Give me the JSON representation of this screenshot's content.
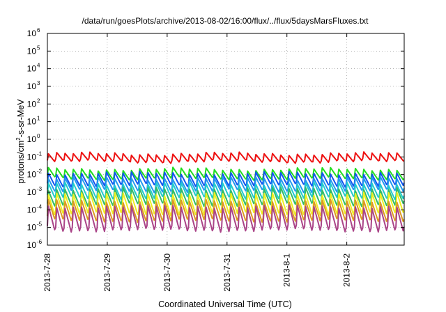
{
  "chart_data": {
    "type": "line",
    "title": "/data/run/goesPlots/archive/2013-08-02/16:00/flux/../flux/5daysMarsFluxes.txt",
    "xlabel": "Coordinated Universal Time (UTC)",
    "ylabel": {
      "pre": "protons/cm",
      "sup": "2",
      "post": "-s-sr-MeV"
    },
    "yscale": "log",
    "ylim_exp": [
      -6,
      6
    ],
    "y_ticks": [
      {
        "base": "10",
        "exp": "-6"
      },
      {
        "base": "10",
        "exp": "-5"
      },
      {
        "base": "10",
        "exp": "-4"
      },
      {
        "base": "10",
        "exp": "-3"
      },
      {
        "base": "10",
        "exp": "-2"
      },
      {
        "base": "10",
        "exp": "-1"
      },
      {
        "base": "10",
        "exp": "0"
      },
      {
        "base": "10",
        "exp": "1"
      },
      {
        "base": "10",
        "exp": "2"
      },
      {
        "base": "10",
        "exp": "3"
      },
      {
        "base": "10",
        "exp": "4"
      },
      {
        "base": "10",
        "exp": "5"
      },
      {
        "base": "10",
        "exp": "6"
      }
    ],
    "x_ticks": [
      "2013-7-28",
      "2013-7-29",
      "2013-7-30",
      "2013-7-31",
      "2013-8-1",
      "2013-8-2"
    ],
    "x_start": "2013-07-28 00:00",
    "x_end": "2013-08-02 23:00",
    "cycles_per_day": 7.2,
    "grid": true,
    "series": [
      {
        "color": "#ee1111",
        "peak": 0.15,
        "trough": 0.055
      },
      {
        "color": "#22dd22",
        "peak": 0.02,
        "trough": 0.006
      },
      {
        "color": "#1155ee",
        "peak": 0.012,
        "trough": 0.0025
      },
      {
        "color": "#2299ee",
        "peak": 0.006,
        "trough": 0.0012
      },
      {
        "color": "#22cccc",
        "peak": 0.003,
        "trough": 0.0005
      },
      {
        "color": "#33bb66",
        "peak": 0.0015,
        "trough": 0.0002
      },
      {
        "color": "#eeee22",
        "peak": 0.0008,
        "trough": 6e-05
      },
      {
        "color": "#dd9922",
        "peak": 0.0003,
        "trough": 2.5e-05
      },
      {
        "color": "#aa4488",
        "peak": 0.00015,
        "trough": 7e-06
      }
    ]
  }
}
